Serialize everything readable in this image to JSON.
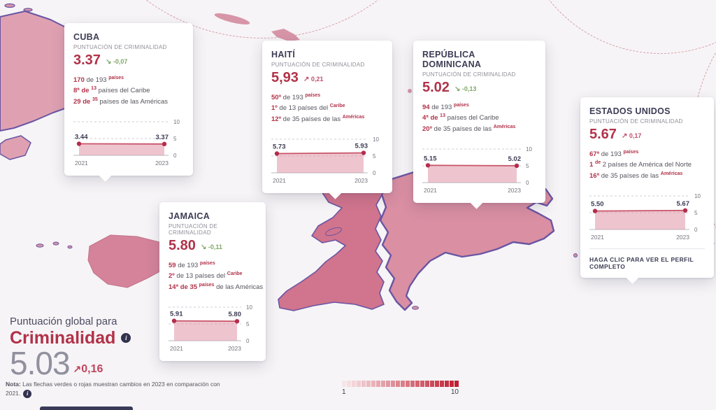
{
  "colors": {
    "background": "#f6f4f6",
    "outline_purple": "#6a55a3",
    "score_red": "#b13249",
    "positive_red": "#c0506a",
    "negative_green": "#80a768",
    "chart_line": "#c85468",
    "chart_dot": "#b32e4d",
    "chart_fill": "#dd8ba0",
    "grid_dash": "#cfcfd6",
    "grid_base": "#b9b9c0",
    "tick_gray": "#73737d",
    "value_dark": "#3b3b54",
    "navy": "#32324e"
  },
  "icons": {
    "up_arrow": "↗",
    "down_arrow": "↘",
    "info": "i"
  },
  "map": {
    "fills": {
      "cuba": "#dfa1b2",
      "juventud": "#dfa1b2",
      "cuba_chain": "#d998ab",
      "jamaica": "#d4839b",
      "haiti": "#d1748d",
      "dominicana": "#da8fa3",
      "pr": "#d57b93",
      "minor": "#d795a8"
    }
  },
  "chart_axis": {
    "ticks": [
      "10",
      "5",
      "0"
    ]
  },
  "cards": [
    {
      "id": "cuba",
      "title": "CUBA",
      "subtitle": "PUNTUACIÓN DE CRIMINALIDAD",
      "score": "3.37",
      "change": "-0,07",
      "trend": "down",
      "ranks": [
        [
          [
            "170",
            "strong"
          ],
          [
            " de 193 ",
            "normal"
          ],
          [
            "países",
            "sup"
          ]
        ],
        [
          [
            "8ª de ",
            "strong"
          ],
          [
            "13",
            "sup"
          ],
          [
            " países del Caribe",
            "normal"
          ]
        ],
        [
          [
            "29 de ",
            "strong"
          ],
          [
            "35",
            "sup"
          ],
          [
            " países de las Américas",
            "normal"
          ]
        ]
      ],
      "chart": {
        "type": "line",
        "years": [
          "2021",
          "2023"
        ],
        "values": [
          3.44,
          3.37
        ],
        "labels": [
          "3.44",
          "3.37"
        ],
        "ylim": [
          0,
          10
        ]
      },
      "cta": null
    },
    {
      "id": "haiti",
      "title": "HAITÍ",
      "subtitle": "PUNTUACIÓN DE CRIMINALIDAD",
      "score": "5,93",
      "change": "0,21",
      "trend": "up",
      "ranks": [
        [
          [
            "50º",
            "strong"
          ],
          [
            " de 193 ",
            "normal"
          ],
          [
            "países",
            "sup"
          ]
        ],
        [
          [
            "1º",
            "strong"
          ],
          [
            " de 13 países del ",
            "normal"
          ],
          [
            "Caribe",
            "sup"
          ]
        ],
        [
          [
            "12º",
            "strong"
          ],
          [
            " de 35 países de las ",
            "normal"
          ],
          [
            "Américas",
            "sup"
          ]
        ]
      ],
      "chart": {
        "type": "line",
        "years": [
          "2021",
          "2023"
        ],
        "values": [
          5.73,
          5.93
        ],
        "labels": [
          "5.73",
          "5.93"
        ],
        "ylim": [
          0,
          10
        ]
      },
      "cta": null
    },
    {
      "id": "dominicana",
      "title": "REPÚBLICA DOMINICANA",
      "subtitle": "PUNTUACIÓN DE CRIMINALIDAD",
      "score": "5.02",
      "change": "-0,13",
      "trend": "down",
      "ranks": [
        [
          [
            "94",
            "strong"
          ],
          [
            " de 193 ",
            "normal"
          ],
          [
            "países",
            "sup"
          ]
        ],
        [
          [
            "4ª de ",
            "strong"
          ],
          [
            "13",
            "sup"
          ],
          [
            " países del Caribe",
            "normal"
          ]
        ],
        [
          [
            "20º",
            "strong"
          ],
          [
            " de 35 países de las ",
            "normal"
          ],
          [
            "Américas",
            "sup"
          ]
        ]
      ],
      "chart": {
        "type": "line",
        "years": [
          "2021",
          "2023"
        ],
        "values": [
          5.15,
          5.02
        ],
        "labels": [
          "5.15",
          "5.02"
        ],
        "ylim": [
          0,
          10
        ]
      },
      "cta": null
    },
    {
      "id": "jamaica",
      "title": "JAMAICA",
      "subtitle": "PUNTUACIÓN DE CRIMINALIDAD",
      "score": "5.80",
      "change": "-0,11",
      "trend": "down",
      "ranks": [
        [
          [
            "59",
            "strong"
          ],
          [
            " de 193 ",
            "normal"
          ],
          [
            "países",
            "sup"
          ]
        ],
        [
          [
            "2º",
            "strong"
          ],
          [
            " de 13 países del ",
            "normal"
          ],
          [
            "Caribe",
            "sup"
          ]
        ],
        [
          [
            "14ª de 35 ",
            "strong"
          ],
          [
            "países",
            "sup"
          ],
          [
            " de las Américas",
            "normal"
          ]
        ]
      ],
      "chart": {
        "type": "line",
        "years": [
          "2021",
          "2023"
        ],
        "values": [
          5.91,
          5.8
        ],
        "labels": [
          "5.91",
          "5.80"
        ],
        "ylim": [
          0,
          10
        ]
      },
      "cta": null
    },
    {
      "id": "eeuu",
      "title": "ESTADOS UNIDOS",
      "subtitle": "PUNTUACIÓN DE CRIMINALIDAD",
      "score": "5.67",
      "change": "0,17",
      "trend": "up",
      "ranks": [
        [
          [
            "67ª",
            "strong"
          ],
          [
            " de 193 ",
            "normal"
          ],
          [
            "países",
            "sup"
          ]
        ],
        [
          [
            "1 ",
            "strong"
          ],
          [
            "de",
            "sup"
          ],
          [
            " 2 países de América del Norte",
            "normal"
          ]
        ],
        [
          [
            "16ª",
            "strong"
          ],
          [
            " de 35 países de las ",
            "normal"
          ],
          [
            "Américas",
            "sup"
          ]
        ]
      ],
      "chart": {
        "type": "line",
        "years": [
          "2021",
          "2023"
        ],
        "values": [
          5.5,
          5.67
        ],
        "labels": [
          "5.50",
          "5.67"
        ],
        "ylim": [
          0,
          10
        ]
      },
      "cta": "HAGA CLIC PARA VER EL PERFIL COMPLETO"
    }
  ],
  "global": {
    "eyebrow": "Puntuación global para",
    "title": "Criminalidad",
    "score": "5.03",
    "change": "0,16",
    "trend": "up",
    "note_strong": "Nota:",
    "note_text": " Las flechas verdes o rojas muestran cambios en 2023 en comparación con 2021."
  },
  "legend": {
    "min_label": "1",
    "max_label": "10",
    "steps": 24,
    "start_color": "#f7e6e8",
    "end_color": "#c01f33"
  }
}
